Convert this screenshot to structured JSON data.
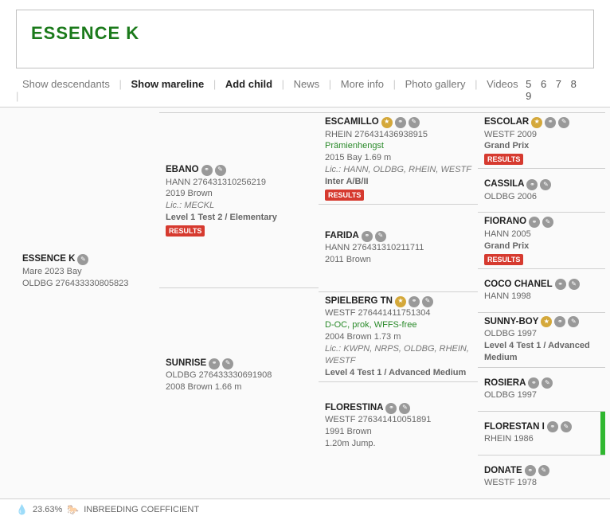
{
  "header": {
    "title": "ESSENCE K",
    "title_color": "#1b7a1b"
  },
  "tabs": {
    "items": [
      "Show descendants",
      "Show mareline",
      "Add child",
      "News",
      "More info",
      "Photo gallery",
      "Videos"
    ],
    "active_indices": [
      1,
      2
    ],
    "generations": "5 6 7 8 9"
  },
  "colors": {
    "results_bg": "#d63a2f",
    "highlight": "#2fb72f",
    "green_text": "#2a8a2a",
    "badge_gray": "#999999",
    "badge_gold": "#d4a83a"
  },
  "footer": {
    "percent": "23.63%",
    "label": "INBREEDING COEFFICIENT"
  },
  "pedigree": {
    "root": {
      "name": "ESSENCE K",
      "line2": "Mare 2023 Bay",
      "line3": "OLDBG 276433330805823"
    },
    "g1": [
      {
        "name": "EBANO",
        "reg": "HANN 276431310256219",
        "born": "2019 Brown",
        "lic": "Lic.: MECKL",
        "level": "Level 1 Test 2 / Elementary",
        "results": "RESULTS"
      },
      {
        "name": "SUNRISE",
        "reg": "OLDBG 276433330691908",
        "born": "2008 Brown 1.66 m"
      }
    ],
    "g2": [
      {
        "name": "ESCAMILLO",
        "gold": true,
        "reg": "RHEIN 276431436938915",
        "award": "Prämienhengst",
        "born": "2015 Bay 1.69 m",
        "lic": "Lic.: HANN, OLDBG, RHEIN, WESTF",
        "level": "Inter A/B/II",
        "results": "RESULTS"
      },
      {
        "name": "FARIDA",
        "reg": "HANN 276431310211711",
        "born": "2011 Brown"
      },
      {
        "name": "SPIELBERG TN",
        "gold": true,
        "reg": "WESTF 276441411751304",
        "award": "D-OC, prok, WFFS-free",
        "born": "2004 Brown 1.73 m",
        "lic": "Lic.: KWPN, NRPS, OLDBG, RHEIN, WESTF",
        "level": "Level 4 Test 1 / Advanced Medium"
      },
      {
        "name": "FLORESTINA",
        "reg": "WESTF 276341410051891",
        "born": "1991 Brown",
        "extra": "1.20m Jump."
      }
    ],
    "g3": [
      {
        "name": "ESCOLAR",
        "gold": true,
        "reg": "WESTF 2009",
        "level": "Grand Prix",
        "results": "RESULTS"
      },
      {
        "name": "CASSILA",
        "reg": "OLDBG 2006"
      },
      {
        "name": "FIORANO",
        "reg": "HANN 2005",
        "level": "Grand Prix",
        "results": "RESULTS"
      },
      {
        "name": "COCO CHANEL",
        "reg": "HANN 1998"
      },
      {
        "name": "SUNNY-BOY",
        "gold": true,
        "reg": "OLDBG 1997",
        "level": "Level 4 Test 1 / Advanced Medium"
      },
      {
        "name": "ROSIERA",
        "reg": "OLDBG 1997"
      },
      {
        "name": "FLORESTAN I",
        "reg": "RHEIN 1986",
        "highlight": true
      },
      {
        "name": "DONATE",
        "reg": "WESTF 1978"
      }
    ]
  }
}
